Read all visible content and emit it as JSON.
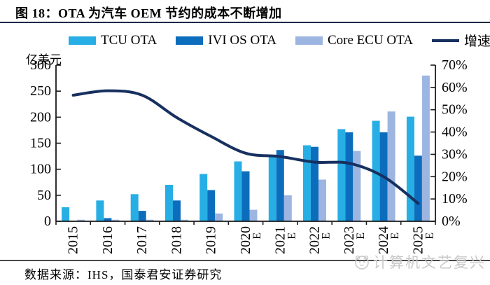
{
  "title": "图 18：OTA 为汽车 OEM 节约的成本不断增加",
  "colors": {
    "tcu_bar": "#27AEE4",
    "ivi_bar": "#0D6DBD",
    "core_bar": "#9DB5E1",
    "growth_line": "#17305F",
    "axis": "#1a1a1a",
    "title_rule": "#1b2a47",
    "footer_rule": "#4a4a4a",
    "watermark": "#c9c9c9"
  },
  "legend": {
    "items": [
      {
        "label": "TCU OTA",
        "color": "#27AEE4",
        "type": "bar"
      },
      {
        "label": "IVI OS OTA",
        "color": "#0D6DBD",
        "type": "bar"
      },
      {
        "label": "Core ECU OTA",
        "color": "#9DB5E1",
        "type": "bar"
      },
      {
        "label": "增速",
        "color": "#17305F",
        "type": "line"
      }
    ]
  },
  "chart_data": {
    "type": "bar+line",
    "title": "OTA 为汽车 OEM 节约的成本不断增加",
    "left_axis": {
      "label": "亿美元",
      "min": 0,
      "max": 300,
      "step": 50
    },
    "right_axis": {
      "min": 0,
      "max": 70,
      "step": 10,
      "suffix": "%"
    },
    "categories": [
      "2015",
      "2016",
      "2017",
      "2018",
      "2019",
      "2020",
      "2021",
      "2022",
      "2023",
      "2024",
      "2025"
    ],
    "estimated_years": [
      "2020",
      "2021",
      "2022",
      "2023",
      "2024",
      "2025"
    ],
    "estimate_suffix": "E",
    "series": [
      {
        "name": "TCU OTA",
        "axis": "left",
        "color": "#27AEE4",
        "values": [
          27,
          40,
          52,
          70,
          91,
          115,
          128,
          146,
          177,
          193,
          201
        ]
      },
      {
        "name": "IVI OS OTA",
        "axis": "left",
        "color": "#0D6DBD",
        "values": [
          1,
          6,
          20,
          40,
          60,
          96,
          137,
          143,
          171,
          171,
          126
        ]
      },
      {
        "name": "Core ECU OTA",
        "axis": "left",
        "color": "#9DB5E1",
        "values": [
          3,
          3,
          3,
          3,
          15,
          22,
          50,
          80,
          135,
          211,
          280
        ]
      }
    ],
    "line_series": {
      "name": "增速",
      "axis": "right",
      "color": "#17305F",
      "values": [
        56.5,
        58.5,
        56.5,
        46.5,
        38,
        30.5,
        29,
        26.5,
        26,
        20,
        8
      ]
    },
    "legend_position": "top",
    "grid": false
  },
  "footer": {
    "source": "数据来源：IHS，国泰君安证券研究"
  },
  "watermark": {
    "text": "计算机文艺复兴"
  }
}
